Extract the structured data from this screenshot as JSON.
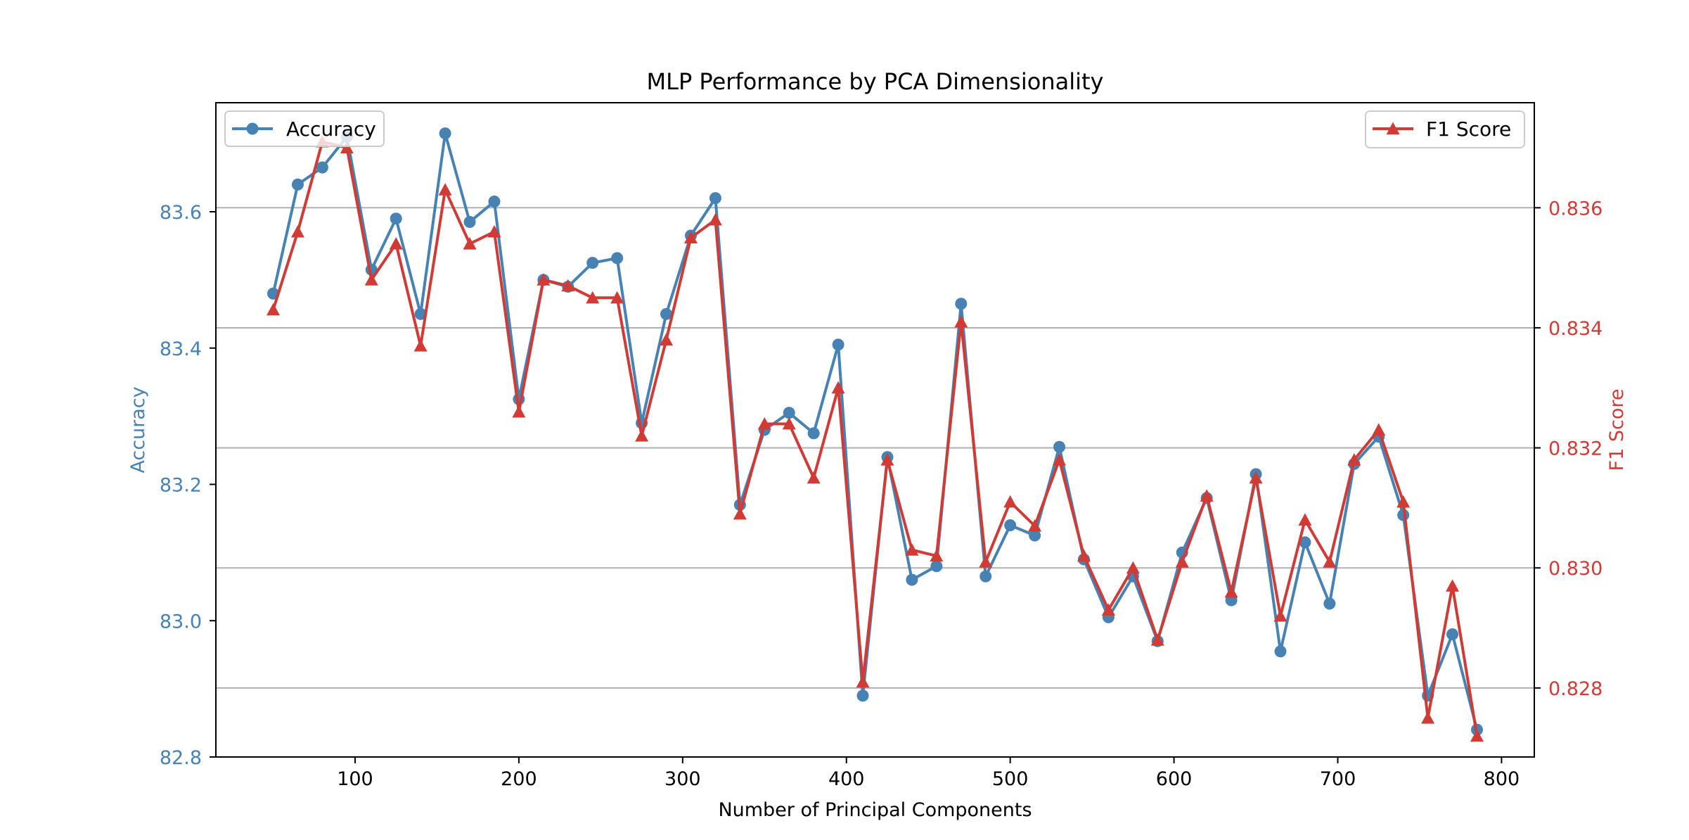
{
  "chart_data": {
    "type": "line",
    "title": "MLP Performance by PCA Dimensionality",
    "xlabel": "Number of Principal Components",
    "ylabel_left": "Accuracy",
    "ylabel_right": "F1 Score",
    "xlim": [
      15,
      820
    ],
    "ylim_left": [
      82.8,
      83.76
    ],
    "ylim_right": [
      0.82685,
      0.83775
    ],
    "x_ticks": [
      100,
      200,
      300,
      400,
      500,
      600,
      700,
      800
    ],
    "y_left_ticks": [
      "82.8",
      "83.0",
      "83.2",
      "83.4",
      "83.6"
    ],
    "y_right_ticks": [
      "0.828",
      "0.830",
      "0.832",
      "0.834",
      "0.836"
    ],
    "grid": "horizontal, right axis",
    "x": [
      50,
      65,
      80,
      95,
      110,
      125,
      140,
      155,
      170,
      185,
      200,
      215,
      230,
      245,
      260,
      275,
      290,
      305,
      320,
      335,
      350,
      365,
      380,
      395,
      410,
      425,
      440,
      455,
      470,
      485,
      500,
      515,
      530,
      545,
      560,
      575,
      590,
      605,
      620,
      635,
      650,
      665,
      680,
      695,
      710,
      725,
      740,
      755,
      770,
      785
    ],
    "series": [
      {
        "name": "Accuracy",
        "axis": "left",
        "marker": "circle",
        "color": "#4682b4",
        "values": [
          83.48,
          83.64,
          83.665,
          83.71,
          83.515,
          83.59,
          83.45,
          83.715,
          83.585,
          83.615,
          83.325,
          83.5,
          83.49,
          83.525,
          83.532,
          83.29,
          83.45,
          83.565,
          83.62,
          83.17,
          83.28,
          83.305,
          83.275,
          83.405,
          82.89,
          83.24,
          83.06,
          83.08,
          83.465,
          83.065,
          83.14,
          83.125,
          83.255,
          83.09,
          83.005,
          83.065,
          82.97,
          83.1,
          83.18,
          83.03,
          83.215,
          82.955,
          83.115,
          83.025,
          83.23,
          83.27,
          83.155,
          82.89,
          82.98,
          82.84
        ]
      },
      {
        "name": "F1 Score",
        "axis": "right",
        "marker": "triangle",
        "color": "#d03b36",
        "values": [
          0.8343,
          0.8356,
          0.8371,
          0.837,
          0.8348,
          0.8354,
          0.8337,
          0.8363,
          0.8354,
          0.8356,
          0.8326,
          0.8348,
          0.8347,
          0.8345,
          0.8345,
          0.8322,
          0.8338,
          0.8355,
          0.8358,
          0.8309,
          0.8324,
          0.8324,
          0.8315,
          0.833,
          0.8281,
          0.8318,
          0.8303,
          0.8302,
          0.8341,
          0.8301,
          0.8311,
          0.8307,
          0.8318,
          0.8302,
          0.8293,
          0.83,
          0.8288,
          0.8301,
          0.8312,
          0.8296,
          0.8315,
          0.8292,
          0.8308,
          0.8301,
          0.8318,
          0.8323,
          0.8311,
          0.8275,
          0.8297,
          0.8272
        ]
      }
    ],
    "legend": [
      {
        "label": "Accuracy",
        "position": "upper left"
      },
      {
        "label": "F1 Score",
        "position": "upper right"
      }
    ]
  },
  "colors": {
    "accuracy": "#4682b4",
    "f1": "#d03b36",
    "grid": "#b0b0b0",
    "axis": "#000000"
  }
}
